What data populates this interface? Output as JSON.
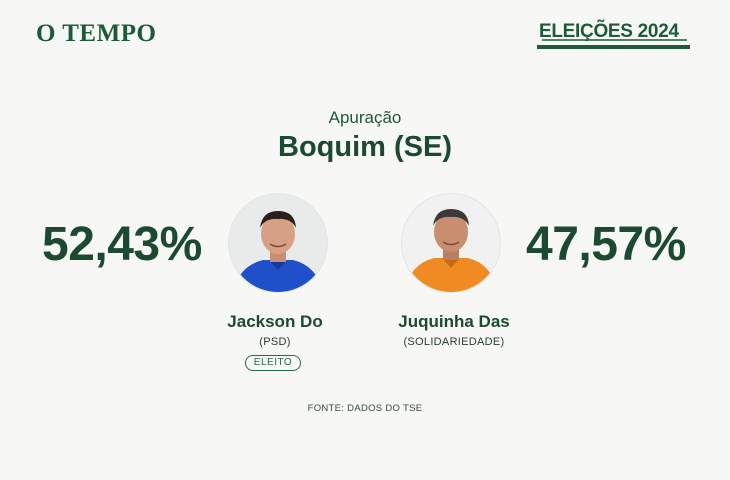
{
  "header": {
    "logo_text": "O TEMPO",
    "badge_text": "ELEIÇÕES 2024",
    "brand_color": "#1c5a38"
  },
  "main": {
    "subtitle": "Apuração",
    "city": "Boquim (SE)",
    "candidates": [
      {
        "percent": "52,43%",
        "name": "Jackson Do",
        "party": "(PSD)",
        "status": "ELEITO",
        "shirt_color": "#1f4fc9"
      },
      {
        "percent": "47,57%",
        "name": "Juquinha Das",
        "party": "(SOLIDARIEDADE)",
        "shirt_color": "#f08a22"
      }
    ],
    "source": "FONTE: DADOS DO TSE"
  }
}
